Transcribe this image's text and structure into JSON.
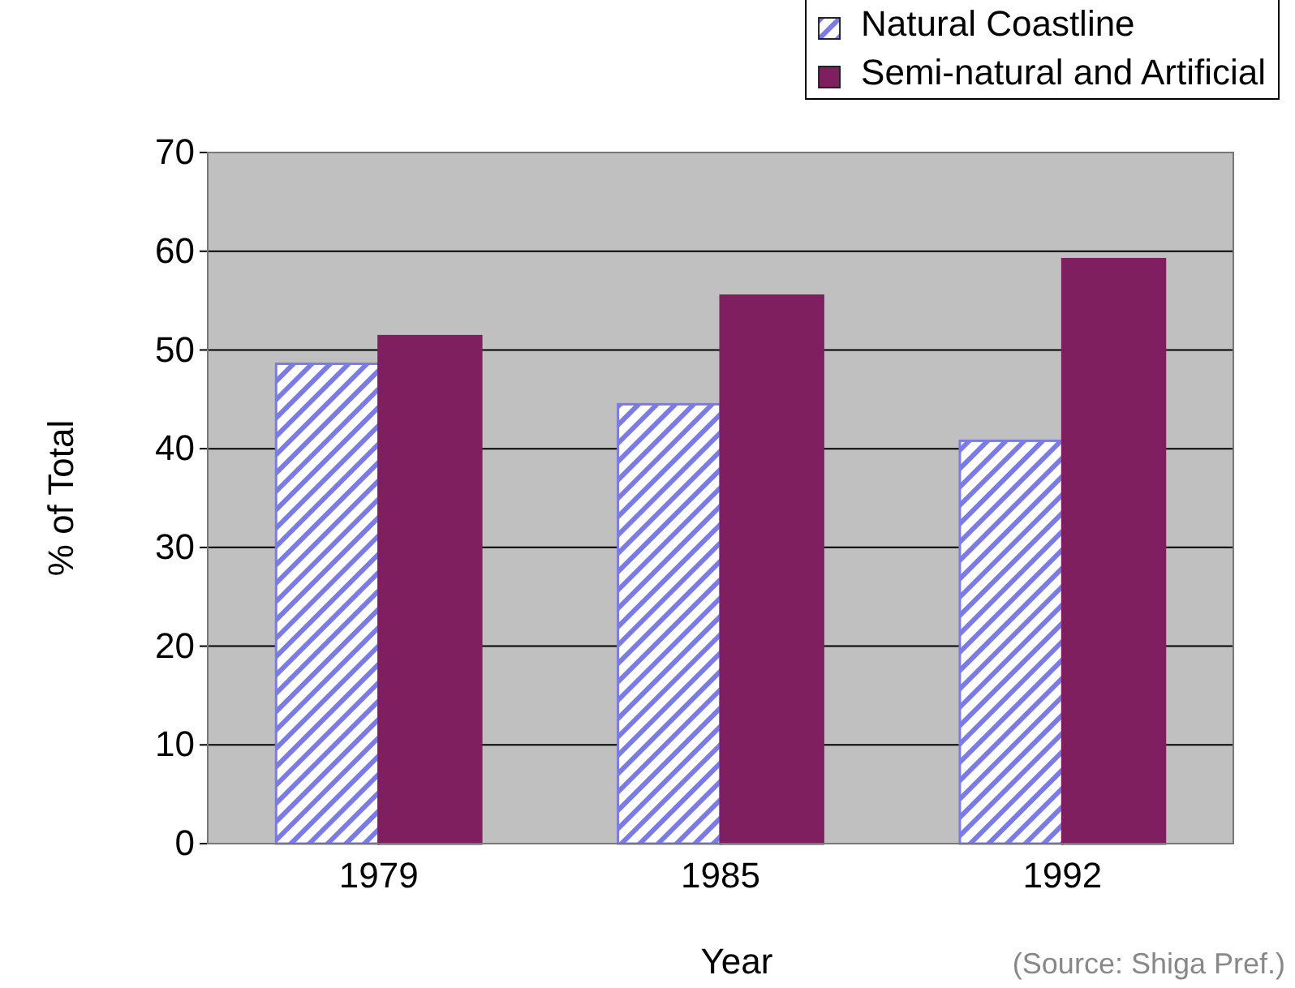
{
  "chart_data": {
    "type": "bar",
    "xlabel": "Year",
    "ylabel": "% of Total",
    "categories": [
      "1979",
      "1985",
      "1992"
    ],
    "series": [
      {
        "name": "Natural Coastline",
        "color": "#7b7be6",
        "values": [
          48.6,
          44.5,
          40.8
        ]
      },
      {
        "name": "Semi-natural and Artificial",
        "color": "#7f1f5f",
        "values": [
          51.4,
          55.5,
          59.2
        ]
      }
    ],
    "ylim": [
      0,
      70
    ],
    "yticks": [
      0,
      10,
      20,
      30,
      40,
      50,
      60,
      70
    ],
    "grid": "y",
    "legend": "top right",
    "annotations": [
      "(Source: Shiga Pref.)"
    ]
  }
}
